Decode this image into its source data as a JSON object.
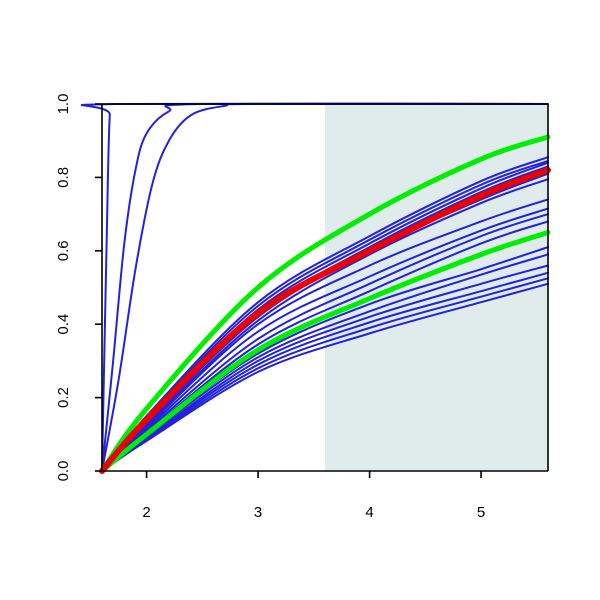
{
  "chart_data": {
    "type": "line",
    "title": "",
    "xlabel": "",
    "ylabel": "",
    "xlim": [
      1.6,
      5.6
    ],
    "ylim": [
      0.0,
      1.0
    ],
    "x_ticks": [
      "2",
      "3",
      "4",
      "5"
    ],
    "y_ticks": [
      "0.0",
      "0.2",
      "0.4",
      "0.6",
      "0.8",
      "1.0"
    ],
    "shaded_region": {
      "x_start": 3.6,
      "x_end": 5.6,
      "color": "#e0eceb"
    },
    "colors": {
      "band": "#00ee00",
      "central": "#ee0000",
      "member": "#2222dd"
    },
    "series": [
      {
        "role": "member",
        "values": [
          [
            1.6,
            0.0
          ],
          [
            1.64,
            0.6
          ],
          [
            1.67,
            0.97
          ],
          [
            1.72,
            1.0
          ],
          [
            5.6,
            1.0
          ]
        ]
      },
      {
        "role": "member",
        "values": [
          [
            1.6,
            0.0
          ],
          [
            1.7,
            0.3
          ],
          [
            1.8,
            0.62
          ],
          [
            1.9,
            0.82
          ],
          [
            2.0,
            0.92
          ],
          [
            2.2,
            0.98
          ],
          [
            2.5,
            1.0
          ],
          [
            5.6,
            1.0
          ]
        ]
      },
      {
        "role": "member",
        "values": [
          [
            1.6,
            0.0
          ],
          [
            1.75,
            0.25
          ],
          [
            1.9,
            0.55
          ],
          [
            2.05,
            0.78
          ],
          [
            2.2,
            0.9
          ],
          [
            2.4,
            0.97
          ],
          [
            2.7,
            0.995
          ],
          [
            3.0,
            1.0
          ],
          [
            5.6,
            1.0
          ]
        ]
      },
      {
        "role": "member",
        "values": [
          [
            1.6,
            0.0
          ],
          [
            2.0,
            0.15
          ],
          [
            3.0,
            0.46
          ],
          [
            4.0,
            0.64
          ],
          [
            5.0,
            0.79
          ],
          [
            5.6,
            0.855
          ]
        ]
      },
      {
        "role": "member",
        "values": [
          [
            1.6,
            0.0
          ],
          [
            2.0,
            0.145
          ],
          [
            3.0,
            0.45
          ],
          [
            4.0,
            0.63
          ],
          [
            5.0,
            0.78
          ],
          [
            5.6,
            0.845
          ]
        ]
      },
      {
        "role": "member",
        "values": [
          [
            1.6,
            0.0
          ],
          [
            2.0,
            0.14
          ],
          [
            3.0,
            0.44
          ],
          [
            4.0,
            0.62
          ],
          [
            5.0,
            0.77
          ],
          [
            5.6,
            0.84
          ]
        ]
      },
      {
        "role": "member",
        "values": [
          [
            1.6,
            0.0
          ],
          [
            2.0,
            0.135
          ],
          [
            3.0,
            0.43
          ],
          [
            4.0,
            0.61
          ],
          [
            5.0,
            0.76
          ],
          [
            5.6,
            0.83
          ]
        ]
      },
      {
        "role": "member",
        "values": [
          [
            1.6,
            0.0
          ],
          [
            2.0,
            0.13
          ],
          [
            3.0,
            0.42
          ],
          [
            4.0,
            0.6
          ],
          [
            5.0,
            0.74
          ],
          [
            5.6,
            0.81
          ]
        ]
      },
      {
        "role": "member",
        "values": [
          [
            1.6,
            0.0
          ],
          [
            2.0,
            0.125
          ],
          [
            3.0,
            0.41
          ],
          [
            4.0,
            0.59
          ],
          [
            5.0,
            0.73
          ],
          [
            5.6,
            0.795
          ]
        ]
      },
      {
        "role": "member",
        "values": [
          [
            1.6,
            0.0
          ],
          [
            2.0,
            0.12
          ],
          [
            3.0,
            0.4
          ],
          [
            4.0,
            0.56
          ],
          [
            5.0,
            0.68
          ],
          [
            5.6,
            0.74
          ]
        ]
      },
      {
        "role": "member",
        "values": [
          [
            1.6,
            0.0
          ],
          [
            2.0,
            0.115
          ],
          [
            3.0,
            0.38
          ],
          [
            4.0,
            0.53
          ],
          [
            5.0,
            0.655
          ],
          [
            5.6,
            0.715
          ]
        ]
      },
      {
        "role": "member",
        "values": [
          [
            1.6,
            0.0
          ],
          [
            2.0,
            0.11
          ],
          [
            3.0,
            0.36
          ],
          [
            4.0,
            0.51
          ],
          [
            5.0,
            0.64
          ],
          [
            5.6,
            0.7
          ]
        ]
      },
      {
        "role": "member",
        "values": [
          [
            1.6,
            0.0
          ],
          [
            2.0,
            0.105
          ],
          [
            3.0,
            0.345
          ],
          [
            4.0,
            0.49
          ],
          [
            5.0,
            0.62
          ],
          [
            5.6,
            0.68
          ]
        ]
      },
      {
        "role": "member",
        "values": [
          [
            1.6,
            0.0
          ],
          [
            2.0,
            0.1
          ],
          [
            3.0,
            0.32
          ],
          [
            4.0,
            0.455
          ],
          [
            5.0,
            0.55
          ],
          [
            5.6,
            0.61
          ]
        ]
      },
      {
        "role": "member",
        "values": [
          [
            1.6,
            0.0
          ],
          [
            2.0,
            0.095
          ],
          [
            3.0,
            0.31
          ],
          [
            4.0,
            0.435
          ],
          [
            5.0,
            0.535
          ],
          [
            5.6,
            0.59
          ]
        ]
      },
      {
        "role": "member",
        "values": [
          [
            1.6,
            0.0
          ],
          [
            2.0,
            0.09
          ],
          [
            3.0,
            0.3
          ],
          [
            4.0,
            0.42
          ],
          [
            5.0,
            0.51
          ],
          [
            5.6,
            0.56
          ]
        ]
      },
      {
        "role": "member",
        "values": [
          [
            1.6,
            0.0
          ],
          [
            2.0,
            0.088
          ],
          [
            3.0,
            0.29
          ],
          [
            4.0,
            0.405
          ],
          [
            5.0,
            0.49
          ],
          [
            5.6,
            0.54
          ]
        ]
      },
      {
        "role": "member",
        "values": [
          [
            1.6,
            0.0
          ],
          [
            2.0,
            0.085
          ],
          [
            3.0,
            0.28
          ],
          [
            4.0,
            0.39
          ],
          [
            5.0,
            0.475
          ],
          [
            5.6,
            0.525
          ]
        ]
      },
      {
        "role": "member",
        "values": [
          [
            1.6,
            0.0
          ],
          [
            2.0,
            0.082
          ],
          [
            3.0,
            0.27
          ],
          [
            4.0,
            0.375
          ],
          [
            5.0,
            0.46
          ],
          [
            5.6,
            0.51
          ]
        ]
      },
      {
        "role": "band",
        "values": [
          [
            1.6,
            0.0
          ],
          [
            2.0,
            0.17
          ],
          [
            3.0,
            0.5
          ],
          [
            4.0,
            0.7
          ],
          [
            5.0,
            0.85
          ],
          [
            5.6,
            0.91
          ]
        ]
      },
      {
        "role": "band",
        "values": [
          [
            1.6,
            0.0
          ],
          [
            2.0,
            0.1
          ],
          [
            3.0,
            0.33
          ],
          [
            4.0,
            0.47
          ],
          [
            5.0,
            0.59
          ],
          [
            5.6,
            0.65
          ]
        ]
      },
      {
        "role": "central",
        "values": [
          [
            1.6,
            0.0
          ],
          [
            2.0,
            0.14
          ],
          [
            3.0,
            0.43
          ],
          [
            4.0,
            0.6
          ],
          [
            5.0,
            0.75
          ],
          [
            5.6,
            0.82
          ]
        ]
      }
    ]
  }
}
